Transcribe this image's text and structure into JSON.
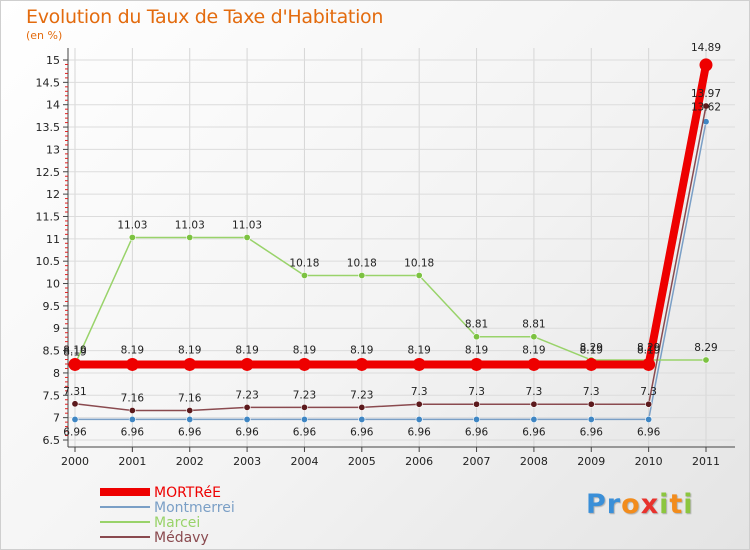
{
  "title": "Evolution du Taux de Taxe d'Habitation",
  "subtitle": "(en %)",
  "logo": {
    "text": "Proxiti",
    "letters": [
      {
        "ch": "P",
        "color": "#3a8fd8"
      },
      {
        "ch": "r",
        "color": "#3a8fd8"
      },
      {
        "ch": "o",
        "color": "#f28c1c"
      },
      {
        "ch": "x",
        "color": "#e8322d"
      },
      {
        "ch": "i",
        "color": "#8cc63f"
      },
      {
        "ch": "t",
        "color": "#f28c1c"
      },
      {
        "ch": "i",
        "color": "#8cc63f"
      }
    ]
  },
  "chart_data": {
    "type": "line",
    "title": "Evolution du Taux de Taxe d'Habitation",
    "ylabel": "(en %)",
    "xlabel": "",
    "x": [
      "2000",
      "2001",
      "2002",
      "2003",
      "2004",
      "2005",
      "2006",
      "2007",
      "2008",
      "2009",
      "2010",
      "2011"
    ],
    "ylim": [
      6.5,
      15
    ],
    "yticks": [
      6.5,
      7,
      7.5,
      8,
      8.5,
      9,
      9.5,
      10,
      10.5,
      11,
      11.5,
      12,
      12.5,
      13,
      13.5,
      14,
      14.5,
      15
    ],
    "ytick_labels": [
      "6.5",
      "7",
      "7.5",
      "8",
      "8.5",
      "9",
      "9.5",
      "10",
      "10.5",
      "11",
      "11.5",
      "12",
      "12.5",
      "13",
      "13.5",
      "14",
      "14.5",
      "15"
    ],
    "legend_position": "bottom-left",
    "series": [
      {
        "name": "Montmerrei",
        "color": "#7a9fc6",
        "marker": "#3f86c3",
        "width": 1.5,
        "marker_r": 3.2,
        "values": [
          6.96,
          6.96,
          6.96,
          6.96,
          6.96,
          6.96,
          6.96,
          6.96,
          6.96,
          6.96,
          6.96,
          13.62
        ],
        "labels": [
          "6.96",
          "6.96",
          "6.96",
          "6.96",
          "6.96",
          "6.96",
          "6.96",
          "6.96",
          "6.96",
          "6.96",
          "6.96",
          "13.62"
        ]
      },
      {
        "name": "Marcei",
        "color": "#99d36a",
        "marker": "#7cc241",
        "width": 1.5,
        "marker_r": 3.2,
        "values": [
          8.19,
          11.03,
          11.03,
          11.03,
          10.18,
          10.18,
          10.18,
          8.81,
          8.81,
          8.29,
          8.29,
          8.29
        ],
        "labels": [
          "8.19",
          "11.03",
          "11.03",
          "11.03",
          "10.18",
          "10.18",
          "10.18",
          "8.81",
          "8.81",
          "8.29",
          "8.29",
          "8.29"
        ]
      },
      {
        "name": "Médavy",
        "color": "#8a4a4f",
        "marker": "#5c1a1d",
        "width": 1.5,
        "marker_r": 3.2,
        "values": [
          7.31,
          7.16,
          7.16,
          7.23,
          7.23,
          7.23,
          7.3,
          7.3,
          7.3,
          7.3,
          7.3,
          13.97
        ],
        "labels": [
          "7.31",
          "7.16",
          "7.16",
          "7.23",
          "7.23",
          "7.23",
          "7.3",
          "7.3",
          "7.3",
          "7.3",
          "7.3",
          "13.97"
        ]
      },
      {
        "name": "MORTRéE",
        "color": "#ee0000",
        "marker": "#ee0000",
        "width": 8,
        "marker_r": 6.5,
        "values": [
          8.19,
          8.19,
          8.19,
          8.19,
          8.19,
          8.19,
          8.19,
          8.19,
          8.19,
          8.19,
          8.19,
          14.89
        ],
        "labels": [
          "8.19",
          "8.19",
          "8.19",
          "8.19",
          "8.19",
          "8.19",
          "8.19",
          "8.19",
          "8.19",
          "8.19",
          "8.19",
          "14.89"
        ]
      }
    ],
    "legend": [
      {
        "name": "MORTRéE",
        "color": "#ee0000",
        "width": 8
      },
      {
        "name": "Montmerrei",
        "color": "#7a9fc6",
        "width": 2
      },
      {
        "name": "Marcei",
        "color": "#99d36a",
        "width": 2
      },
      {
        "name": "Médavy",
        "color": "#8a4a4f",
        "width": 2
      }
    ]
  }
}
